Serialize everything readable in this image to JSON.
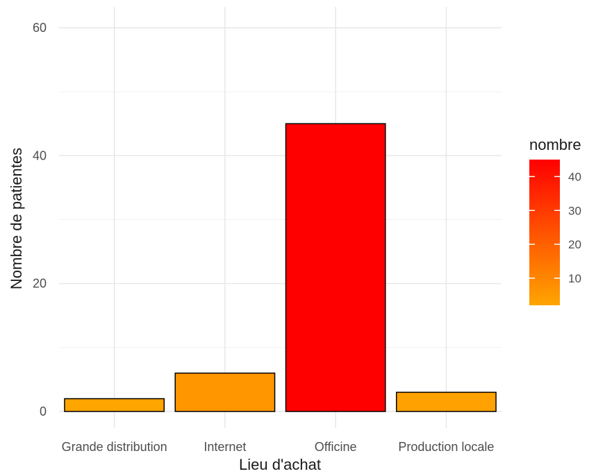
{
  "chart_data": {
    "type": "bar",
    "categories": [
      "Grande distribution",
      "Internet",
      "Officine",
      "Production locale"
    ],
    "values": [
      2,
      6,
      45,
      3
    ],
    "xlabel": "Lieu d'achat",
    "ylabel": "Nombre de patientes",
    "ylim": [
      0,
      62
    ],
    "yticks": [
      0,
      20,
      40,
      60
    ],
    "grid": true,
    "bar_outline_color": "#000000",
    "legend": {
      "title": "nombre",
      "placement": "right",
      "type": "colorbar",
      "range": [
        2,
        45
      ],
      "ticks": [
        10,
        20,
        30,
        40
      ],
      "low_color": "#FFA500",
      "high_color": "#FF0000"
    }
  }
}
